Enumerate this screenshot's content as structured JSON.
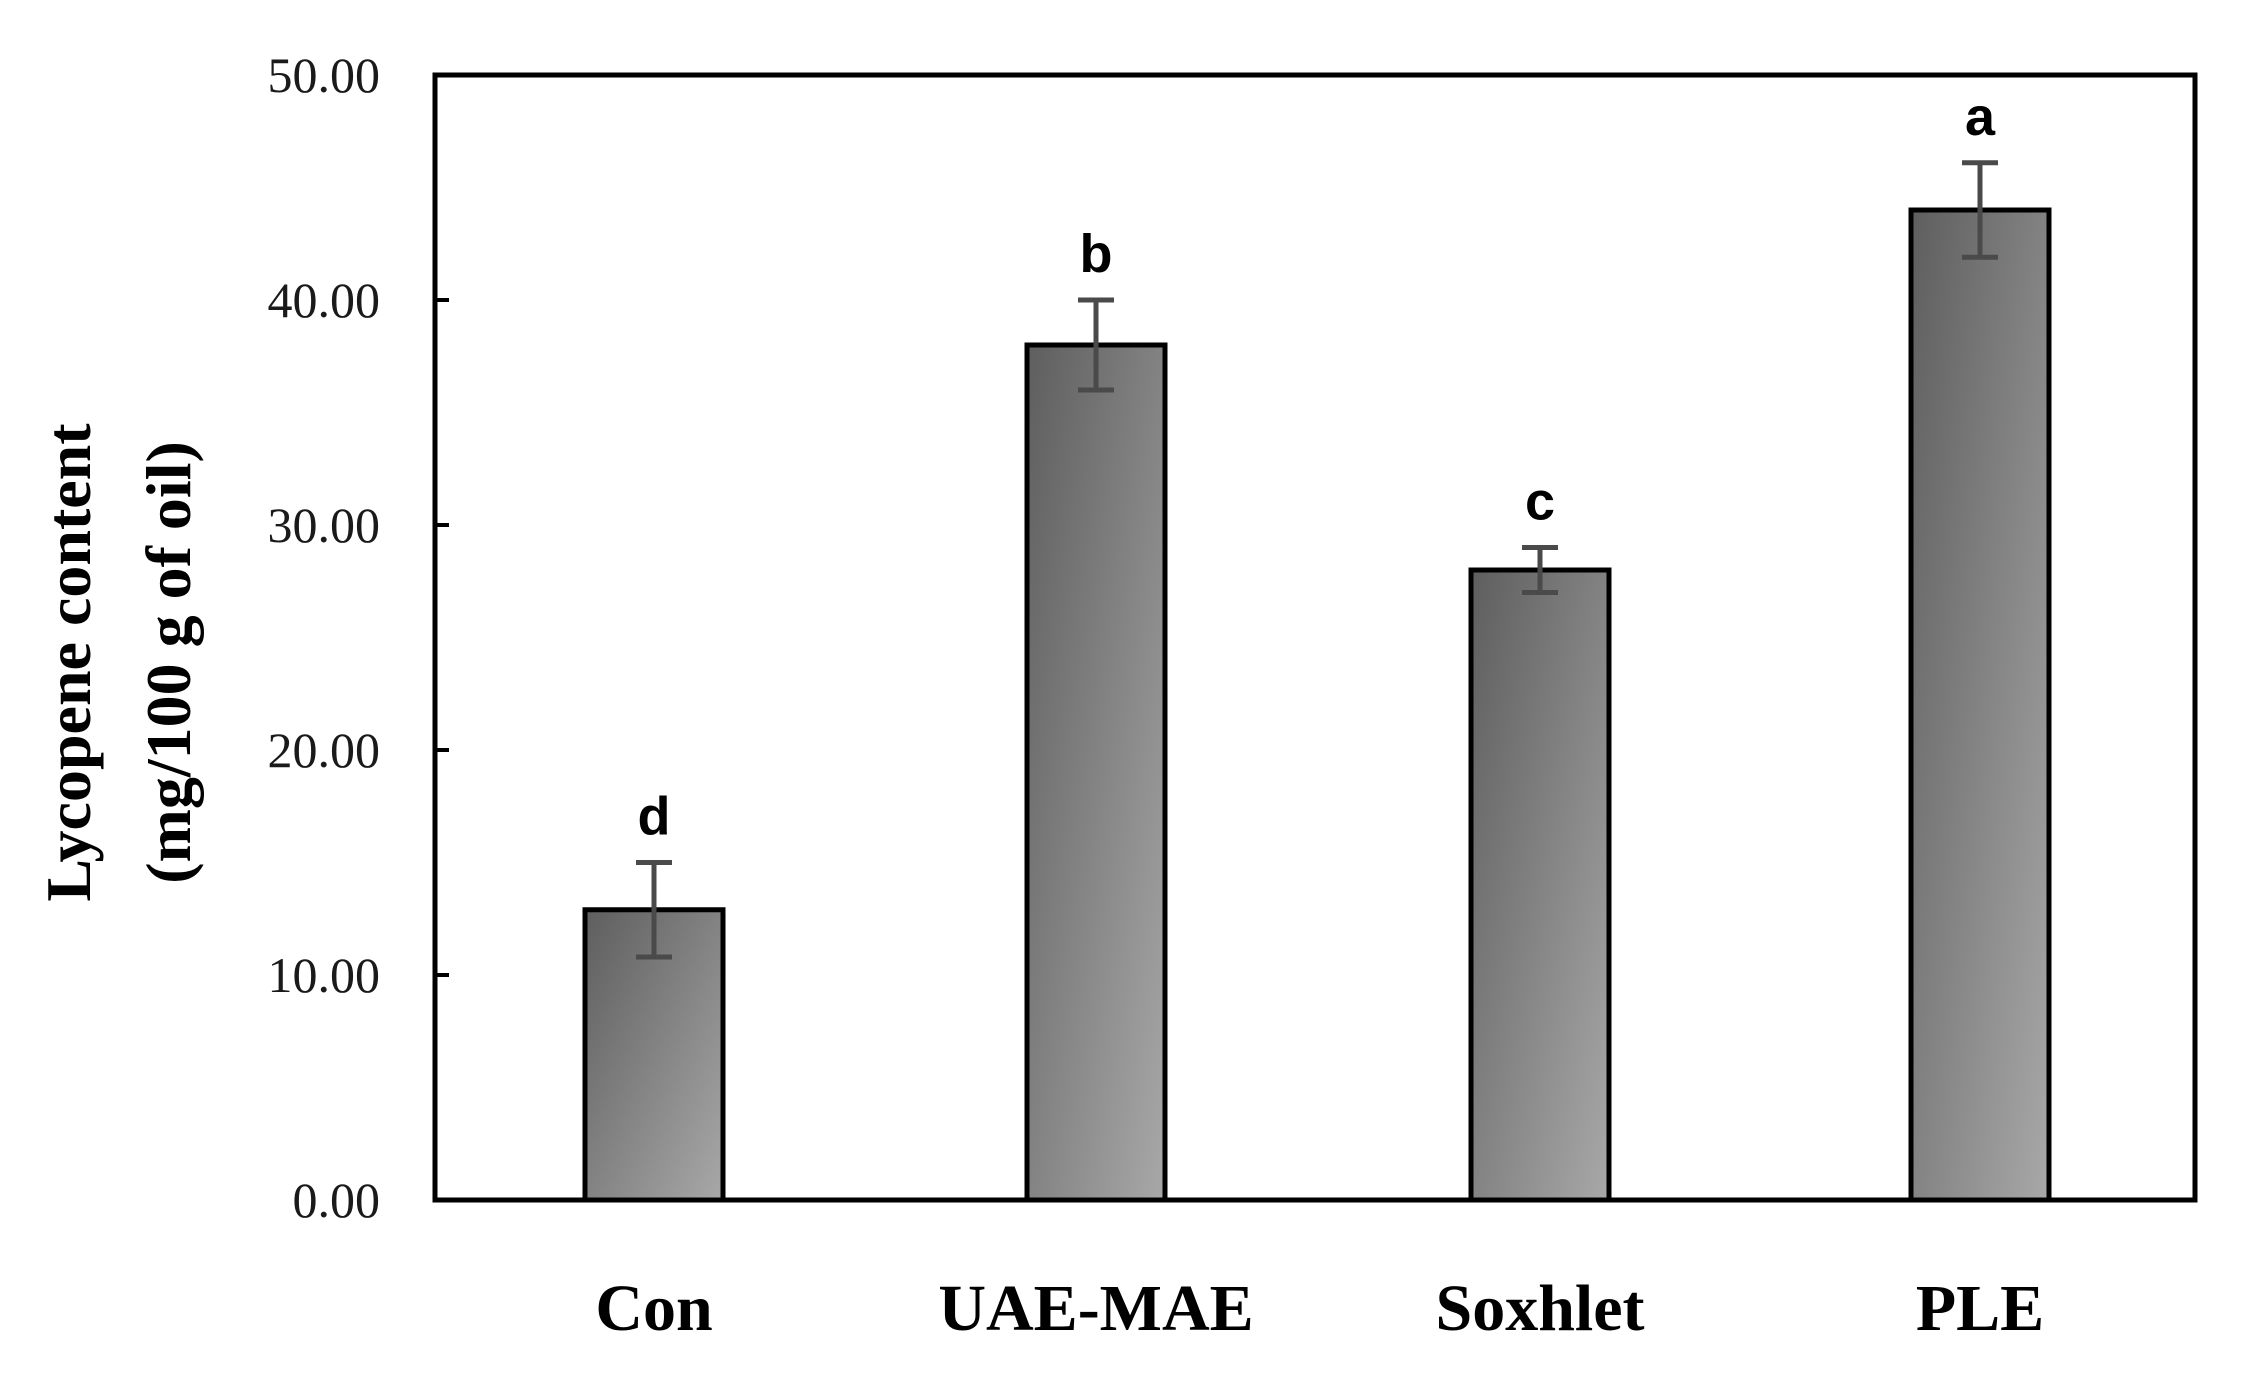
{
  "chart_data": {
    "type": "bar",
    "title": "",
    "xlabel": "",
    "ylabel_lines": [
      "Lycopene content",
      "(mg/100 g of oil)"
    ],
    "categories": [
      "Con",
      "UAE-MAE",
      "Soxhlet",
      "PLE"
    ],
    "values": [
      12.9,
      38.0,
      28.0,
      44.0
    ],
    "errors": [
      2.1,
      2.0,
      1.0,
      2.1
    ],
    "significance": [
      "d",
      "b",
      "c",
      "a"
    ],
    "ylim": [
      0,
      50
    ],
    "yticks": [
      "0.00",
      "10.00",
      "20.00",
      "30.00",
      "40.00",
      "50.00"
    ],
    "grid": false,
    "legend": "none",
    "colors": {
      "bar_dark": "#5e5e5e",
      "bar_light": "#a8a8a8",
      "bar_stroke": "#000000",
      "error_bar": "#4a4a4a",
      "axis": "#000000"
    }
  }
}
